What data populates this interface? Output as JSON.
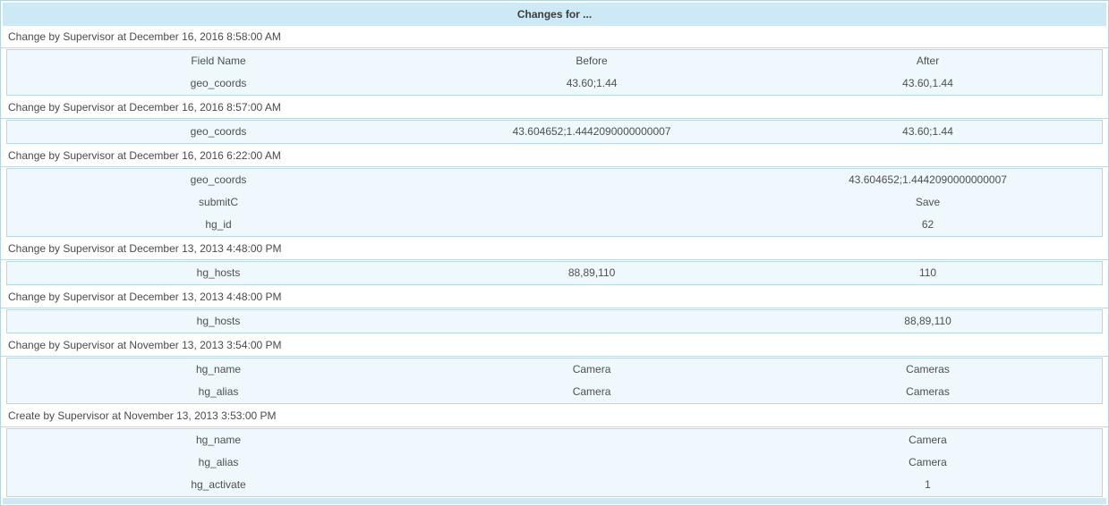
{
  "page": {
    "title": "Changes for ..."
  },
  "table": {
    "columns": [
      "Field Name",
      "Before",
      "After"
    ]
  },
  "sections": [
    {
      "header": "Change by Supervisor at December 16, 2016 8:58:00 AM",
      "show_columns": true,
      "rows": [
        {
          "field": "geo_coords",
          "before": "43.60;1.44",
          "after": "43.60,1.44"
        }
      ]
    },
    {
      "header": "Change by Supervisor at December 16, 2016 8:57:00 AM",
      "show_columns": false,
      "rows": [
        {
          "field": "geo_coords",
          "before": "43.604652;1.4442090000000007",
          "after": "43.60;1.44"
        }
      ]
    },
    {
      "header": "Change by Supervisor at December 16, 2016 6:22:00 AM",
      "show_columns": false,
      "rows": [
        {
          "field": "geo_coords",
          "before": "",
          "after": "43.604652;1.4442090000000007"
        },
        {
          "field": "submitC",
          "before": "",
          "after": "Save"
        },
        {
          "field": "hg_id",
          "before": "",
          "after": "62"
        }
      ]
    },
    {
      "header": "Change by Supervisor at December 13, 2013 4:48:00 PM",
      "show_columns": false,
      "rows": [
        {
          "field": "hg_hosts",
          "before": "88,89,110",
          "after": "110"
        }
      ]
    },
    {
      "header": "Change by Supervisor at December 13, 2013 4:48:00 PM",
      "show_columns": false,
      "rows": [
        {
          "field": "hg_hosts",
          "before": "",
          "after": "88,89,110"
        }
      ]
    },
    {
      "header": "Change by Supervisor at November 13, 2013 3:54:00 PM",
      "show_columns": false,
      "rows": [
        {
          "field": "hg_name",
          "before": "Camera",
          "after": "Cameras"
        },
        {
          "field": "hg_alias",
          "before": "Camera",
          "after": "Cameras"
        }
      ]
    },
    {
      "header": "Create by Supervisor at November 13, 2013 3:53:00 PM",
      "show_columns": false,
      "rows": [
        {
          "field": "hg_name",
          "before": "",
          "after": "Camera"
        },
        {
          "field": "hg_alias",
          "before": "",
          "after": "Camera"
        },
        {
          "field": "hg_activate",
          "before": "",
          "after": "1"
        }
      ]
    }
  ],
  "colors": {
    "band": "#cee9f6",
    "table_bg": "#eff8fd",
    "table_border": "#b6d7e8",
    "outer_border": "#b0d4e8",
    "header_line": "#c8d4dc",
    "text": "#4a4a4a"
  }
}
